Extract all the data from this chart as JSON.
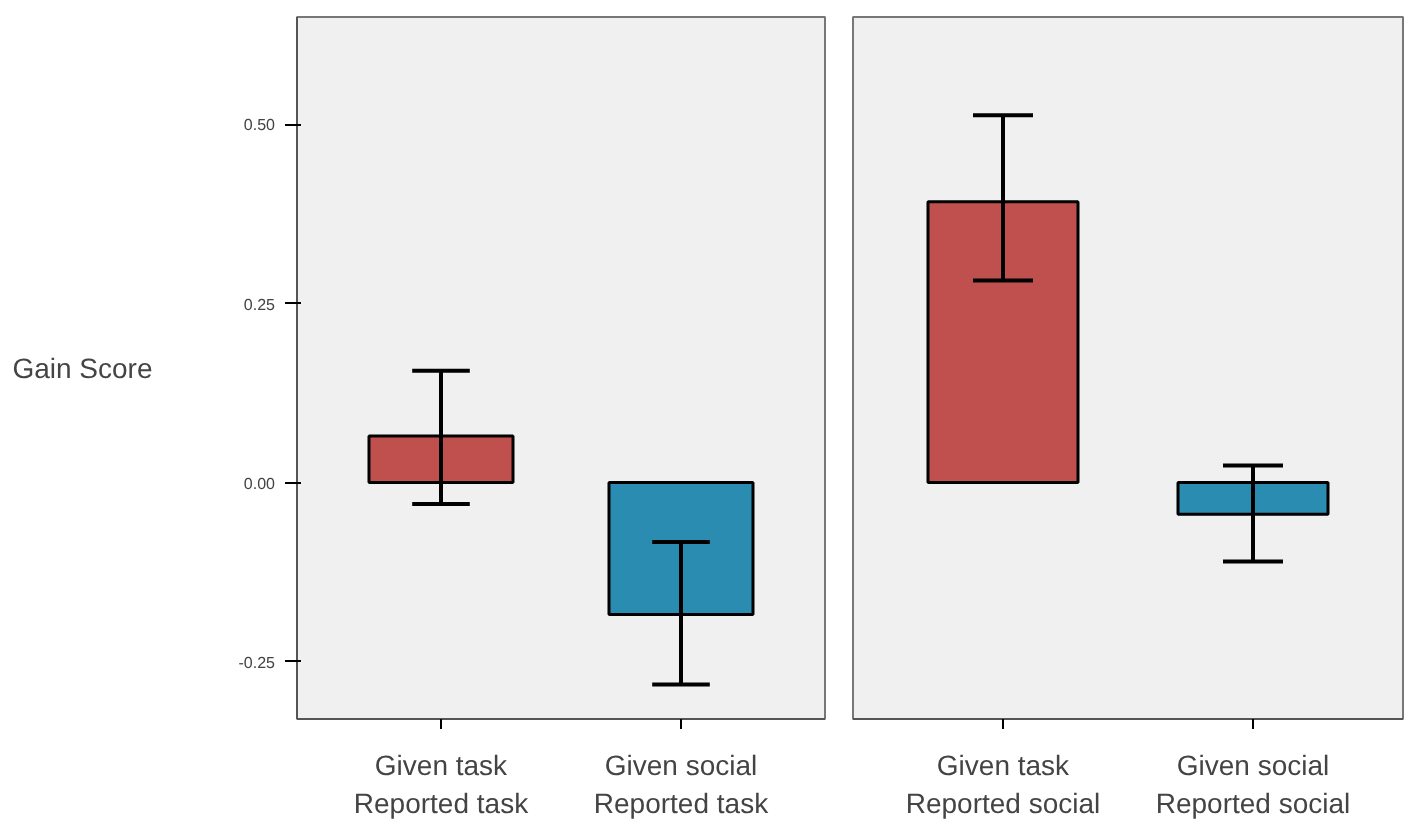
{
  "chart_data": [
    {
      "type": "bar",
      "ylabel": "Gain Score",
      "categories": [
        "Given task\nReported task",
        "Given social\nReported task"
      ],
      "values": [
        0.065,
        -0.184
      ],
      "colors": [
        "#c0504d",
        "#2a8cb0"
      ],
      "errors": [
        [
          -0.03,
          0.156
        ],
        [
          -0.282,
          -0.083
        ]
      ],
      "ylim": [
        -0.33,
        0.65
      ],
      "yticks": [
        {
          "value": -0.25,
          "label": "-0.25"
        },
        {
          "value": 0,
          "label": "0.00"
        },
        {
          "value": 0.25,
          "label": "0.25"
        },
        {
          "value": 0.5,
          "label": "0.50"
        }
      ],
      "grid": false
    },
    {
      "type": "bar",
      "categories": [
        "Given task\nReported social",
        "Given social\nReported social"
      ],
      "values": [
        0.392,
        -0.044
      ],
      "colors": [
        "#c0504d",
        "#2a8cb0"
      ],
      "errors": [
        [
          0.282,
          0.513
        ],
        [
          -0.11,
          0.024
        ]
      ],
      "ylim": [
        -0.33,
        0.65
      ],
      "tick_labels": "x",
      "grid": false
    }
  ]
}
